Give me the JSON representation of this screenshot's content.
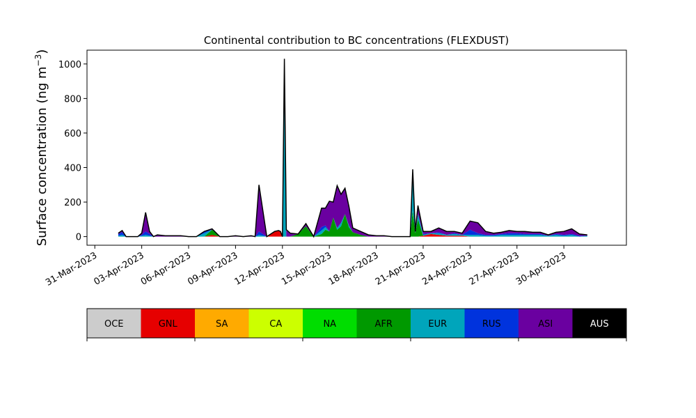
{
  "chart_data": {
    "type": "area",
    "title": "Continental contribution to BC concentrations (FLEXDUST)",
    "ylabel_main": "Surface concentration (ng m",
    "ylabel_sup": "−3",
    "ylabel_close": ")",
    "xlabel": "",
    "stacked": true,
    "grid": false,
    "ylim": [
      -50,
      1080
    ],
    "xlim": [
      "2023-03-30T12:00",
      "2023-05-04T00:00"
    ],
    "y_ticks": [
      0,
      200,
      400,
      600,
      800,
      1000
    ],
    "x_ticks": [
      {
        "date": "2023-03-31",
        "label": "31-Mar-2023"
      },
      {
        "date": "2023-04-03",
        "label": "03-Apr-2023"
      },
      {
        "date": "2023-04-06",
        "label": "06-Apr-2023"
      },
      {
        "date": "2023-04-09",
        "label": "09-Apr-2023"
      },
      {
        "date": "2023-04-12",
        "label": "12-Apr-2023"
      },
      {
        "date": "2023-04-15",
        "label": "15-Apr-2023"
      },
      {
        "date": "2023-04-18",
        "label": "18-Apr-2023"
      },
      {
        "date": "2023-04-21",
        "label": "21-Apr-2023"
      },
      {
        "date": "2023-04-24",
        "label": "24-Apr-2023"
      },
      {
        "date": "2023-04-27",
        "label": "27-Apr-2023"
      },
      {
        "date": "2023-04-30",
        "label": "30-Apr-2023"
      }
    ],
    "x": [
      "2023-04-01T12:00",
      "2023-04-01T18:00",
      "2023-04-02T00:00",
      "2023-04-02T06:00",
      "2023-04-02T12:00",
      "2023-04-02T18:00",
      "2023-04-03T00:00",
      "2023-04-03T06:00",
      "2023-04-03T12:00",
      "2023-04-03T18:00",
      "2023-04-04T00:00",
      "2023-04-04T12:00",
      "2023-04-05T00:00",
      "2023-04-05T12:00",
      "2023-04-06T00:00",
      "2023-04-06T12:00",
      "2023-04-07T00:00",
      "2023-04-07T12:00",
      "2023-04-08T00:00",
      "2023-04-08T12:00",
      "2023-04-09T00:00",
      "2023-04-09T12:00",
      "2023-04-10T00:00",
      "2023-04-10T06:00",
      "2023-04-10T12:00",
      "2023-04-11T00:00",
      "2023-04-11T12:00",
      "2023-04-11T18:00",
      "2023-04-11T21:00",
      "2023-04-12T00:00",
      "2023-04-12T03:00",
      "2023-04-12T06:00",
      "2023-04-12T12:00",
      "2023-04-13T00:00",
      "2023-04-13T12:00",
      "2023-04-14T00:00",
      "2023-04-14T12:00",
      "2023-04-14T18:00",
      "2023-04-15T00:00",
      "2023-04-15T06:00",
      "2023-04-15T12:00",
      "2023-04-15T18:00",
      "2023-04-16T00:00",
      "2023-04-16T06:00",
      "2023-04-16T12:00",
      "2023-04-17T00:00",
      "2023-04-17T12:00",
      "2023-04-18T00:00",
      "2023-04-18T12:00",
      "2023-04-19T00:00",
      "2023-04-19T12:00",
      "2023-04-20T00:00",
      "2023-04-20T04:00",
      "2023-04-20T08:00",
      "2023-04-20T12:00",
      "2023-04-20T16:00",
      "2023-04-21T00:00",
      "2023-04-21T12:00",
      "2023-04-22T00:00",
      "2023-04-22T12:00",
      "2023-04-23T00:00",
      "2023-04-23T12:00",
      "2023-04-24T00:00",
      "2023-04-24T12:00",
      "2023-04-25T00:00",
      "2023-04-25T12:00",
      "2023-04-26T00:00",
      "2023-04-26T12:00",
      "2023-04-27T00:00",
      "2023-04-27T12:00",
      "2023-04-28T00:00",
      "2023-04-28T12:00",
      "2023-04-29T00:00",
      "2023-04-29T12:00",
      "2023-04-30T00:00",
      "2023-04-30T12:00",
      "2023-05-01T00:00",
      "2023-05-01T12:00"
    ],
    "series": [
      {
        "name": "OCE",
        "color": "#cccccc",
        "values": [
          0,
          0,
          0,
          0,
          0,
          0,
          0,
          0,
          0,
          0,
          0,
          0,
          0,
          0,
          0,
          0,
          0,
          0,
          0,
          0,
          0,
          0,
          0,
          0,
          0,
          0,
          0,
          0,
          0,
          0,
          0,
          0,
          0,
          0,
          0,
          0,
          0,
          0,
          0,
          0,
          0,
          0,
          0,
          0,
          0,
          0,
          0,
          0,
          0,
          0,
          0,
          0,
          0,
          0,
          0,
          0,
          0,
          0,
          0,
          0,
          0,
          0,
          0,
          0,
          0,
          0,
          0,
          0,
          0,
          0,
          0,
          0,
          0,
          0,
          0,
          0,
          0,
          0
        ]
      },
      {
        "name": "GNL",
        "color": "#e60000",
        "values": [
          0,
          0,
          0,
          0,
          0,
          0,
          0,
          0,
          0,
          0,
          0,
          0,
          0,
          0,
          0,
          0,
          0,
          10,
          0,
          0,
          0,
          0,
          0,
          0,
          0,
          0,
          30,
          35,
          30,
          0,
          0,
          0,
          0,
          0,
          0,
          0,
          0,
          0,
          0,
          0,
          0,
          0,
          0,
          0,
          0,
          0,
          0,
          0,
          0,
          0,
          0,
          0,
          0,
          0,
          0,
          0,
          5,
          15,
          10,
          5,
          5,
          5,
          0,
          0,
          0,
          0,
          0,
          0,
          0,
          0,
          0,
          0,
          0,
          0,
          0,
          0,
          0,
          0
        ]
      },
      {
        "name": "SA",
        "color": "#ffaa00",
        "values": [
          0,
          0,
          0,
          0,
          0,
          0,
          0,
          0,
          0,
          0,
          0,
          0,
          0,
          0,
          0,
          0,
          0,
          0,
          0,
          0,
          0,
          0,
          0,
          0,
          0,
          0,
          0,
          0,
          0,
          0,
          0,
          0,
          0,
          0,
          0,
          0,
          0,
          0,
          0,
          0,
          0,
          0,
          0,
          0,
          0,
          0,
          0,
          0,
          0,
          0,
          0,
          0,
          0,
          0,
          0,
          0,
          0,
          0,
          0,
          0,
          0,
          0,
          0,
          0,
          0,
          0,
          0,
          0,
          0,
          0,
          0,
          0,
          0,
          0,
          0,
          0,
          0,
          0
        ]
      },
      {
        "name": "CA",
        "color": "#ccff00",
        "values": [
          0,
          0,
          0,
          0,
          0,
          0,
          0,
          0,
          0,
          0,
          0,
          0,
          0,
          0,
          0,
          0,
          0,
          0,
          0,
          0,
          0,
          0,
          0,
          0,
          0,
          0,
          0,
          0,
          0,
          0,
          0,
          0,
          0,
          0,
          0,
          0,
          0,
          0,
          0,
          0,
          0,
          0,
          0,
          0,
          0,
          0,
          0,
          0,
          0,
          0,
          0,
          0,
          0,
          0,
          0,
          0,
          0,
          0,
          0,
          0,
          0,
          0,
          0,
          0,
          0,
          0,
          0,
          0,
          0,
          0,
          0,
          0,
          0,
          0,
          0,
          0,
          0,
          0
        ]
      },
      {
        "name": "NA",
        "color": "#00dd00",
        "values": [
          0,
          0,
          0,
          0,
          0,
          0,
          0,
          0,
          0,
          0,
          0,
          0,
          0,
          0,
          0,
          0,
          0,
          0,
          0,
          0,
          0,
          0,
          0,
          0,
          0,
          0,
          0,
          0,
          0,
          0,
          0,
          0,
          0,
          0,
          0,
          0,
          0,
          0,
          0,
          0,
          0,
          0,
          0,
          0,
          0,
          0,
          0,
          0,
          0,
          0,
          0,
          0,
          0,
          0,
          0,
          0,
          0,
          0,
          0,
          0,
          0,
          0,
          0,
          0,
          0,
          0,
          0,
          0,
          0,
          0,
          0,
          0,
          0,
          0,
          0,
          0,
          0,
          0
        ]
      },
      {
        "name": "AFR",
        "color": "#009900",
        "values": [
          0,
          0,
          0,
          0,
          0,
          0,
          0,
          0,
          0,
          0,
          0,
          0,
          0,
          0,
          0,
          0,
          0,
          30,
          0,
          0,
          0,
          0,
          0,
          0,
          0,
          0,
          0,
          0,
          0,
          0,
          0,
          0,
          0,
          15,
          60,
          0,
          15,
          40,
          30,
          110,
          40,
          60,
          130,
          55,
          25,
          10,
          0,
          0,
          0,
          0,
          0,
          0,
          0,
          150,
          20,
          100,
          0,
          0,
          0,
          0,
          0,
          0,
          0,
          0,
          0,
          0,
          0,
          0,
          0,
          0,
          0,
          0,
          0,
          0,
          0,
          0,
          0,
          0
        ]
      },
      {
        "name": "EUR",
        "color": "#00a5bb",
        "values": [
          5,
          10,
          0,
          0,
          0,
          0,
          5,
          10,
          5,
          0,
          0,
          0,
          0,
          0,
          0,
          0,
          20,
          0,
          0,
          0,
          0,
          0,
          0,
          0,
          10,
          0,
          0,
          0,
          0,
          0,
          920,
          0,
          0,
          0,
          0,
          0,
          20,
          15,
          0,
          0,
          10,
          20,
          0,
          10,
          0,
          0,
          0,
          0,
          0,
          0,
          0,
          0,
          0,
          220,
          0,
          30,
          5,
          5,
          10,
          5,
          10,
          5,
          10,
          10,
          5,
          5,
          10,
          10,
          10,
          10,
          10,
          10,
          5,
          10,
          5,
          10,
          0,
          5
        ]
      },
      {
        "name": "RUS",
        "color": "#0033dd",
        "values": [
          10,
          15,
          0,
          0,
          0,
          0,
          5,
          20,
          10,
          0,
          0,
          0,
          0,
          0,
          0,
          0,
          10,
          0,
          0,
          0,
          0,
          0,
          0,
          0,
          20,
          0,
          0,
          0,
          0,
          0,
          30,
          0,
          0,
          0,
          0,
          0,
          20,
          10,
          0,
          0,
          0,
          0,
          0,
          0,
          0,
          0,
          0,
          0,
          0,
          0,
          0,
          0,
          0,
          0,
          0,
          0,
          5,
          0,
          5,
          0,
          5,
          0,
          30,
          10,
          5,
          5,
          5,
          10,
          10,
          5,
          5,
          5,
          0,
          5,
          5,
          5,
          5,
          0
        ]
      },
      {
        "name": "ASI",
        "color": "#6a00a0",
        "values": [
          5,
          10,
          0,
          0,
          0,
          0,
          10,
          110,
          15,
          0,
          10,
          5,
          5,
          5,
          0,
          0,
          0,
          5,
          0,
          0,
          5,
          0,
          5,
          0,
          270,
          0,
          0,
          0,
          0,
          0,
          80,
          40,
          20,
          0,
          15,
          0,
          110,
          100,
          175,
          90,
          245,
          165,
          150,
          110,
          25,
          20,
          10,
          5,
          5,
          0,
          0,
          0,
          0,
          20,
          10,
          50,
          15,
          10,
          25,
          20,
          10,
          10,
          50,
          60,
          20,
          10,
          10,
          15,
          10,
          15,
          10,
          10,
          5,
          10,
          20,
          30,
          10,
          5
        ]
      },
      {
        "name": "AUS",
        "color": "#000000",
        "values": [
          0,
          0,
          0,
          0,
          0,
          0,
          0,
          0,
          0,
          0,
          0,
          0,
          0,
          0,
          0,
          0,
          0,
          0,
          0,
          0,
          0,
          0,
          0,
          0,
          0,
          0,
          0,
          0,
          0,
          0,
          0,
          0,
          0,
          0,
          0,
          0,
          0,
          0,
          0,
          0,
          0,
          0,
          0,
          0,
          0,
          0,
          0,
          0,
          0,
          0,
          0,
          0,
          0,
          0,
          0,
          0,
          0,
          0,
          0,
          0,
          0,
          0,
          0,
          0,
          0,
          0,
          0,
          0,
          0,
          0,
          0,
          0,
          0,
          0,
          0,
          0,
          0,
          0
        ]
      }
    ],
    "colorbar": [
      {
        "label": "OCE",
        "color": "#cccccc",
        "text_color": "#000000"
      },
      {
        "label": "GNL",
        "color": "#e60000",
        "text_color": "#000000"
      },
      {
        "label": "SA",
        "color": "#ffaa00",
        "text_color": "#000000"
      },
      {
        "label": "CA",
        "color": "#ccff00",
        "text_color": "#000000"
      },
      {
        "label": "NA",
        "color": "#00dd00",
        "text_color": "#000000"
      },
      {
        "label": "AFR",
        "color": "#009900",
        "text_color": "#000000"
      },
      {
        "label": "EUR",
        "color": "#00a5bb",
        "text_color": "#000000"
      },
      {
        "label": "RUS",
        "color": "#0033dd",
        "text_color": "#000000"
      },
      {
        "label": "ASI",
        "color": "#6a00a0",
        "text_color": "#000000"
      },
      {
        "label": "AUS",
        "color": "#000000",
        "text_color": "#ffffff"
      }
    ]
  }
}
